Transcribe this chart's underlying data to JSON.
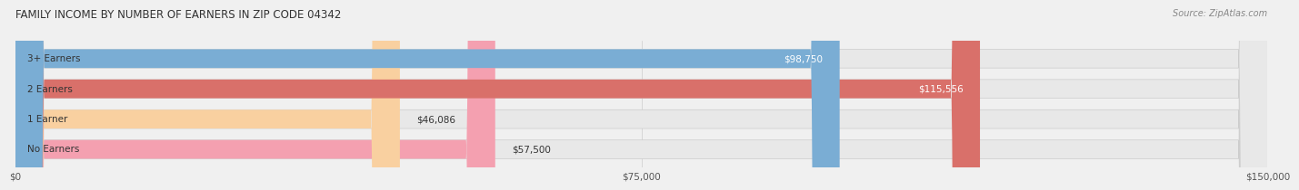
{
  "title": "FAMILY INCOME BY NUMBER OF EARNERS IN ZIP CODE 04342",
  "source": "Source: ZipAtlas.com",
  "categories": [
    "No Earners",
    "1 Earner",
    "2 Earners",
    "3+ Earners"
  ],
  "values": [
    57500,
    46086,
    115556,
    98750
  ],
  "bar_colors": [
    "#f4a0b0",
    "#f9d0a0",
    "#d9706a",
    "#7aadd4"
  ],
  "label_colors": [
    "#555555",
    "#555555",
    "#ffffff",
    "#ffffff"
  ],
  "max_value": 150000,
  "x_ticks": [
    0,
    75000,
    150000
  ],
  "x_tick_labels": [
    "$0",
    "$75,000",
    "$150,000"
  ],
  "background_color": "#f0f0f0",
  "bar_bg_color": "#e8e8e8",
  "value_labels": [
    "$57,500",
    "$46,086",
    "$115,556",
    "$98,750"
  ]
}
